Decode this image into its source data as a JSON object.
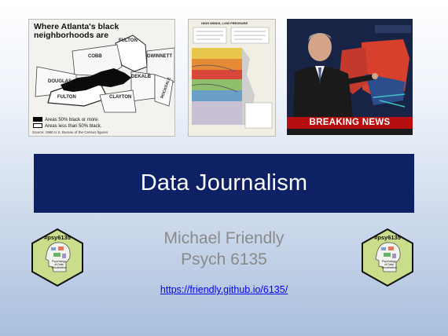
{
  "map": {
    "title": "Where Atlanta's black neighborhoods are",
    "counties": [
      "FULTON",
      "COBB",
      "GWINNETT",
      "DOUGLAS",
      "DEKALB",
      "FULTON",
      "CLAYTON",
      "ROCKDALE"
    ],
    "legend": [
      "Areas 50% black or more.",
      "Areas less than 50% black."
    ],
    "source": "Source: 1980 U.S. Bureau of the Census figures"
  },
  "weather": {
    "headline": "HIGH WINDS, LOW PRESSURE"
  },
  "news": {
    "banner": "BREAKING NEWS"
  },
  "slide": {
    "title": "Data Journalism",
    "author": "Michael Friendly",
    "course": "Psych 6135",
    "url": "https://friendly.github.io/6135/"
  },
  "badge": {
    "hashtag": "#psy6135",
    "caption": [
      "Psychology",
      "of Data",
      "Visualization"
    ]
  },
  "colors": {
    "banner": "#0d2164",
    "author_text": "#8a8a8a",
    "link": "#0000ee",
    "badge_fill": "#c9dd8a",
    "news_alert": "#b70f0f"
  }
}
